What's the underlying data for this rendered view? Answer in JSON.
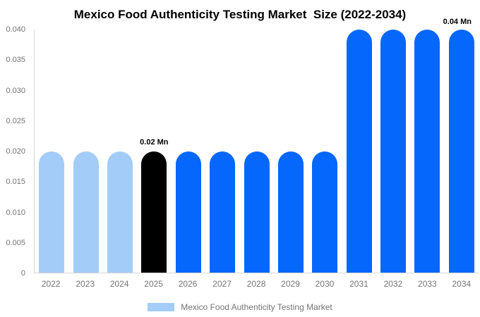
{
  "title": "Mexico Food Authenticity Testing Market  Size (2022-2034)",
  "top_right_annotation": "0.04 Mn",
  "legend": {
    "label": "Mexico Food Authenticity Testing Market",
    "swatch_color": "#a3ccf8"
  },
  "colors": {
    "light_blue": "#a3ccf8",
    "bright_blue": "#0667fc",
    "black": "#000000",
    "axis_line": "#d6d6d6",
    "tick_text": "#737373"
  },
  "chart_data": {
    "type": "bar",
    "title": "Mexico Food Authenticity Testing Market  Size (2022-2034)",
    "xlabel": "",
    "ylabel": "",
    "unit": "Mn",
    "categories": [
      "2022",
      "2023",
      "2024",
      "2025",
      "2026",
      "2027",
      "2028",
      "2029",
      "2030",
      "2031",
      "2032",
      "2033",
      "2034"
    ],
    "values": [
      0.02,
      0.02,
      0.02,
      0.02,
      0.02,
      0.02,
      0.02,
      0.02,
      0.02,
      0.04,
      0.04,
      0.04,
      0.04
    ],
    "bar_colors": [
      "#a3ccf8",
      "#a3ccf8",
      "#a3ccf8",
      "#000000",
      "#0667fc",
      "#0667fc",
      "#0667fc",
      "#0667fc",
      "#0667fc",
      "#0667fc",
      "#0667fc",
      "#0667fc",
      "#0667fc"
    ],
    "ylim": [
      0,
      0.04
    ],
    "yticks": [
      {
        "value": 0,
        "label": "0"
      },
      {
        "value": 0.005,
        "label": "0.005"
      },
      {
        "value": 0.01,
        "label": "0.010"
      },
      {
        "value": 0.015,
        "label": "0.015"
      },
      {
        "value": 0.02,
        "label": "0.020"
      },
      {
        "value": 0.025,
        "label": "0.025"
      },
      {
        "value": 0.03,
        "label": "0.030"
      },
      {
        "value": 0.035,
        "label": "0.035"
      },
      {
        "value": 0.04,
        "label": "0.040"
      }
    ],
    "grid": false,
    "annotations": [
      {
        "text": "0.02 Mn",
        "category": "2025",
        "position": "above-bar"
      },
      {
        "text": "0.04 Mn",
        "category": "2034",
        "position": "top-right"
      }
    ],
    "legend_entries": [
      "Mexico Food Authenticity Testing Market"
    ],
    "legend_position": "bottom"
  }
}
